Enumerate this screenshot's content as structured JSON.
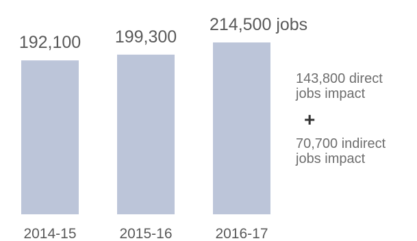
{
  "chart_data": {
    "type": "bar",
    "categories": [
      "2014-15",
      "2015-16",
      "2016-17"
    ],
    "values": [
      192100,
      199300,
      214500
    ],
    "value_labels": [
      "192,100",
      "199,300",
      "214,500 jobs"
    ],
    "title": "",
    "xlabel": "",
    "ylabel": "",
    "ylim": [
      0,
      214500
    ],
    "grid": false,
    "legend": "none",
    "bar_color": "#bcc5d9"
  },
  "annotations": {
    "direct": "143,800 direct\njobs impact",
    "plus": "+",
    "indirect": "70,700 indirect\njobs impact"
  }
}
